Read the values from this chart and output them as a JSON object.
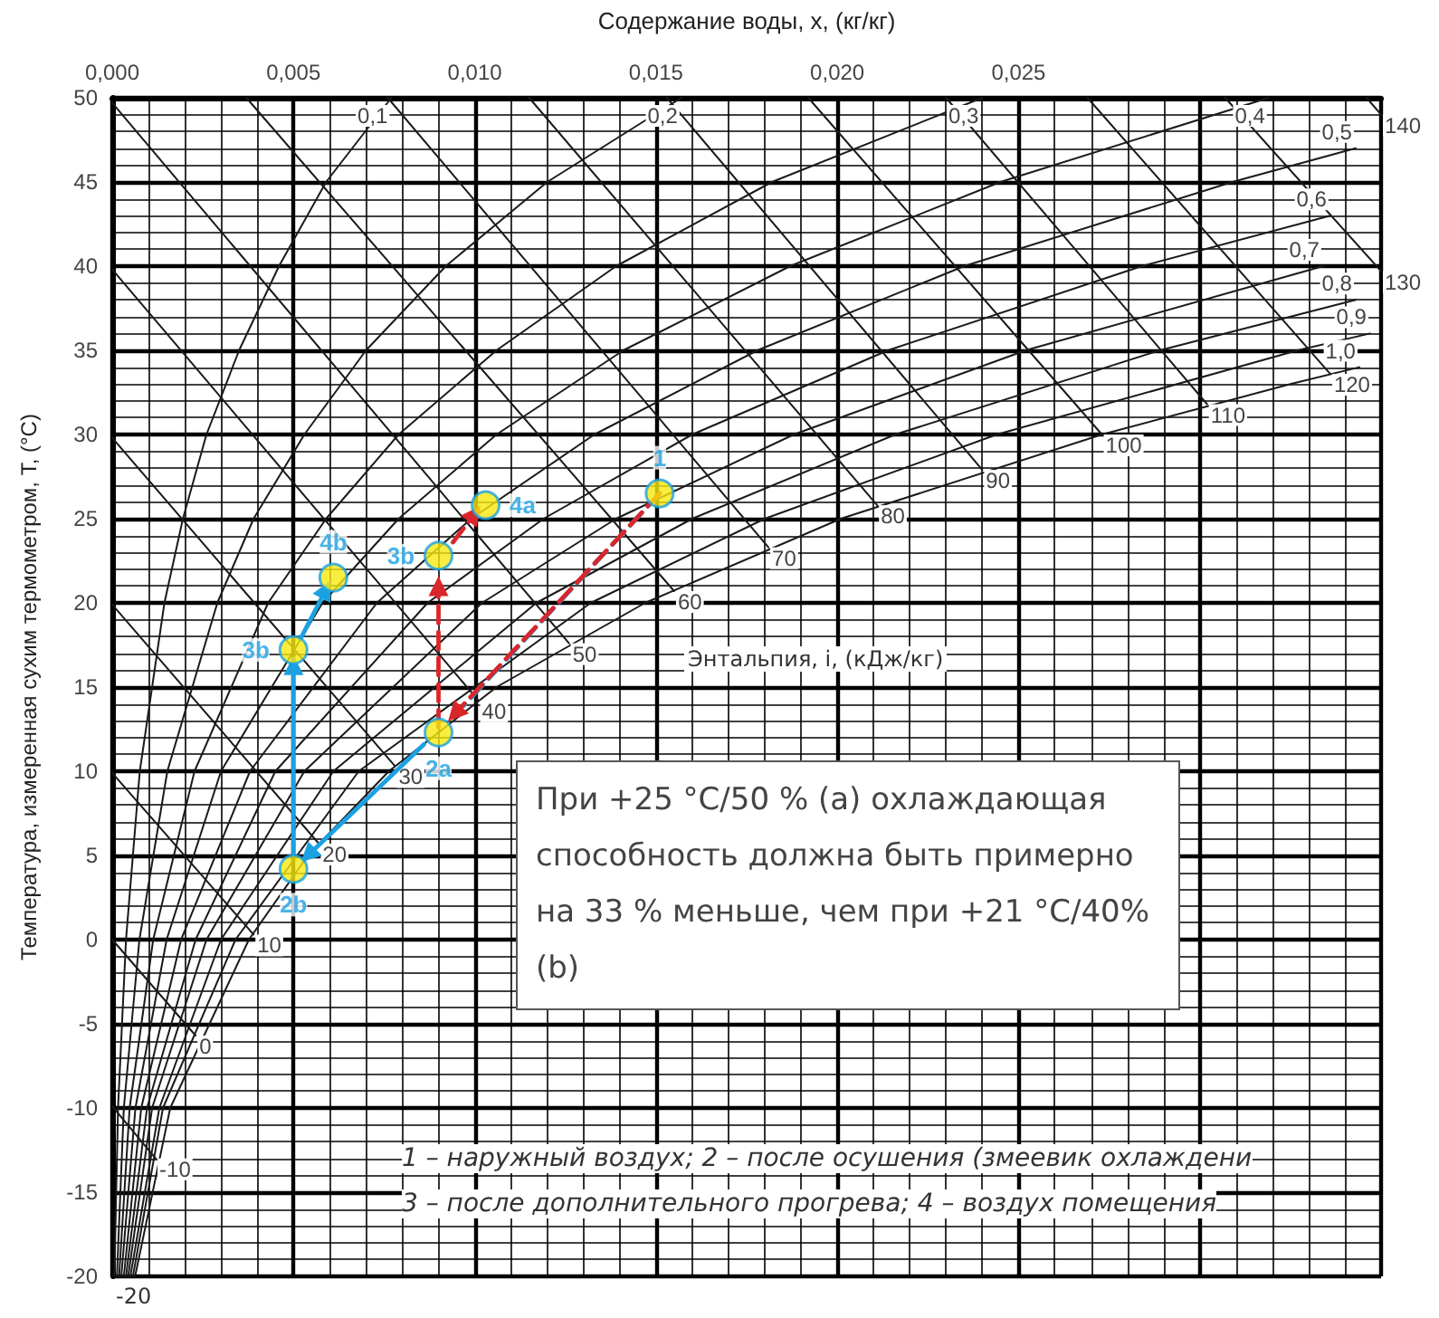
{
  "chart_data": {
    "type": "line",
    "xlabel": "Содержание воды, x, (кг/кг)",
    "ylabel": "Температура, измеренная сухим термометром, T, (°C)",
    "xlim": [
      0,
      0.035
    ],
    "ylim": [
      -20,
      50
    ],
    "xticks": [
      {
        "value": 0,
        "label": "0,000"
      },
      {
        "value": 0.005,
        "label": "0,005"
      },
      {
        "value": 0.01,
        "label": "0,010"
      },
      {
        "value": 0.015,
        "label": "0,015"
      },
      {
        "value": 0.02,
        "label": "0,020"
      },
      {
        "value": 0.025,
        "label": "0,025"
      },
      {
        "value": 0.03,
        "label": null
      },
      {
        "value": 0.035,
        "label": null
      }
    ],
    "yticks": [
      -20,
      -15,
      -10,
      -5,
      0,
      5,
      10,
      15,
      20,
      25,
      30,
      35,
      40,
      45,
      50
    ],
    "grid": true,
    "legend": false,
    "marker": "none",
    "line_style": "solid",
    "annotations": [
      "-20",
      "Энтальпия, i, (кДж/кг)",
      "При +25 °C/50 % (a) охлаждающая способность должна быть примерно на 33 % меньше, чем при +21 °C/40% (b)",
      "1 – наружный воздух; 2 – после осушения (змеевик охлаждени",
      "3 – после дополнительного прогрева; 4 – воздух помещения"
    ],
    "series": [
      {
        "name": "0,1",
        "color": "#1a1a1a",
        "x": [
          6e-05,
          0.00016,
          0.00038,
          0.00076,
          0.00144,
          0.00195,
          0.0026,
          0.0035,
          0.0046,
          0.0059,
          0.0077
        ],
        "values": [
          -20,
          -10,
          0,
          10,
          20,
          25,
          30,
          35,
          40,
          45,
          50
        ]
      },
      {
        "name": "0,2",
        "color": "#1a1a1a",
        "x": [
          0.00013,
          0.00032,
          0.00075,
          0.00152,
          0.0029,
          0.0039,
          0.0053,
          0.007,
          0.0092,
          0.012,
          0.0157
        ],
        "values": [
          -20,
          -10,
          0,
          10,
          20,
          25,
          30,
          35,
          40,
          45,
          50
        ]
      },
      {
        "name": "0,3",
        "color": "#1a1a1a",
        "x": [
          0.00019,
          0.00048,
          0.00113,
          0.00227,
          0.0043,
          0.0059,
          0.0079,
          0.0106,
          0.0139,
          0.0182,
          0.024
        ],
        "values": [
          -20,
          -10,
          0,
          10,
          20,
          25,
          30,
          35,
          40,
          45,
          50
        ]
      },
      {
        "name": "0,4",
        "color": "#1a1a1a",
        "x": [
          0.00025,
          0.00064,
          0.0015,
          0.003,
          0.0058,
          0.0079,
          0.0106,
          0.0141,
          0.0187,
          0.0245,
          0.0319
        ],
        "values": [
          -20,
          -10,
          0,
          10,
          20,
          25,
          30,
          35,
          40,
          45,
          50
        ]
      },
      {
        "name": "0,5",
        "color": "#1a1a1a",
        "x": [
          0.00032,
          0.0008,
          0.0019,
          0.0038,
          0.0073,
          0.0099,
          0.0133,
          0.0178,
          0.0235,
          0.0309,
          0.0343
        ],
        "values": [
          -20,
          -10,
          0,
          10,
          20,
          25,
          30,
          35,
          40,
          45,
          47
        ]
      },
      {
        "name": "0,6",
        "color": "#1a1a1a",
        "x": [
          0.00038,
          0.00096,
          0.0023,
          0.0045,
          0.0087,
          0.0119,
          0.016,
          0.0214,
          0.0284,
          0.0336
        ],
        "values": [
          -20,
          -10,
          0,
          10,
          20,
          25,
          30,
          35,
          40,
          43
        ]
      },
      {
        "name": "0,7",
        "color": "#1a1a1a",
        "x": [
          0.00044,
          0.0011,
          0.0026,
          0.0053,
          0.0102,
          0.0139,
          0.0188,
          0.0252,
          0.0334
        ],
        "values": [
          -20,
          -10,
          0,
          10,
          20,
          25,
          30,
          35,
          40
        ]
      },
      {
        "name": "0,8",
        "color": "#1a1a1a",
        "x": [
          0.0005,
          0.0013,
          0.003,
          0.0061,
          0.0117,
          0.016,
          0.0216,
          0.0289,
          0.0343
        ],
        "values": [
          -20,
          -10,
          0,
          10,
          20,
          25,
          30,
          35,
          38
        ]
      },
      {
        "name": "0,9",
        "color": "#1a1a1a",
        "x": [
          0.00057,
          0.0014,
          0.0034,
          0.0068,
          0.0132,
          0.018,
          0.0244,
          0.0327,
          0.0347
        ],
        "values": [
          -20,
          -10,
          0,
          10,
          20,
          25,
          30,
          35,
          36
        ]
      },
      {
        "name": "1,0",
        "color": "#1a1a1a",
        "x": [
          0.00063,
          0.0016,
          0.00377,
          0.0054,
          0.00763,
          0.0106,
          0.0147,
          0.0201,
          0.0273,
          0.0325,
          0.0344
        ],
        "values": [
          -20,
          -10,
          0,
          5,
          10,
          15,
          20,
          25,
          30,
          33,
          34
        ]
      },
      {
        "name": "-10",
        "color": "#1a1a1a",
        "x": [
          0,
          0.0012
        ],
        "values": [
          -9.9,
          -13
        ]
      },
      {
        "name": "0",
        "color": "#1a1a1a",
        "x": [
          0,
          0.0023
        ],
        "values": [
          0,
          -5.7
        ]
      },
      {
        "name": "10",
        "color": "#1a1a1a",
        "x": [
          0,
          0.0039
        ],
        "values": [
          9.9,
          0.3
        ]
      },
      {
        "name": "20",
        "color": "#1a1a1a",
        "x": [
          0,
          0.0057
        ],
        "values": [
          19.9,
          5.7
        ]
      },
      {
        "name": "30",
        "color": "#1a1a1a",
        "x": [
          0,
          0.0078
        ],
        "values": [
          29.8,
          10.3
        ]
      },
      {
        "name": "40",
        "color": "#1a1a1a",
        "x": [
          0,
          0.0101
        ],
        "values": [
          39.8,
          14.2
        ]
      },
      {
        "name": "50",
        "color": "#1a1a1a",
        "x": [
          0,
          0.0126
        ],
        "values": [
          49.7,
          17.6
        ]
      },
      {
        "name": "60",
        "color": "#1a1a1a",
        "x": [
          0.0037,
          0.0155
        ],
        "values": [
          50,
          20.7
        ]
      },
      {
        "name": "70",
        "color": "#1a1a1a",
        "x": [
          0.0076,
          0.0181
        ],
        "values": [
          50,
          23.3
        ]
      },
      {
        "name": "80",
        "color": "#1a1a1a",
        "x": [
          0.0115,
          0.0211
        ],
        "values": [
          50,
          25.8
        ]
      },
      {
        "name": "90",
        "color": "#1a1a1a",
        "x": [
          0.0153,
          0.024
        ],
        "values": [
          50,
          27.9
        ]
      },
      {
        "name": "100",
        "color": "#1a1a1a",
        "x": [
          0.0192,
          0.0273
        ],
        "values": [
          50,
          30
        ]
      },
      {
        "name": "110",
        "color": "#1a1a1a",
        "x": [
          0.023,
          0.0302
        ],
        "values": [
          50,
          31.8
        ]
      },
      {
        "name": "120",
        "color": "#1a1a1a",
        "x": [
          0.0269,
          0.0336
        ],
        "values": [
          50,
          33.6
        ]
      },
      {
        "name": "130",
        "color": "#1a1a1a",
        "x": [
          0.0307,
          0.035
        ],
        "values": [
          50,
          39.7
        ]
      },
      {
        "name": "140",
        "color": "#1a1a1a",
        "x": [
          0.0346,
          0.035
        ],
        "values": [
          50,
          49
        ]
      },
      {
        "color": "#1ba1e2",
        "line_style": "dashed",
        "x": [
          0.0151,
          0.0097
        ],
        "values": [
          26.5,
          13.9
        ]
      },
      {
        "color": "#d9262b",
        "line_style": "dashed",
        "marker": "triangle",
        "x": [
          0.0151,
          0.00945
        ],
        "values": [
          26.5,
          13.4
        ]
      },
      {
        "color": "#d9262b",
        "line_style": "dashed",
        "marker": "triangle",
        "x": [
          0.009,
          0.009
        ],
        "values": [
          12.6,
          21
        ]
      },
      {
        "color": "#d9262b",
        "line_style": "dashed",
        "marker": "triangle",
        "x": [
          0.0094,
          0.01
        ],
        "values": [
          23.6,
          25.3
        ]
      },
      {
        "color": "#1ba1e2",
        "marker": "triangle",
        "x": [
          0.0086,
          0.0054
        ],
        "values": [
          11.6,
          5
        ]
      },
      {
        "color": "#1ba1e2",
        "marker": "triangle",
        "x": [
          0.005,
          0.005
        ],
        "values": [
          5.1,
          16.3
        ]
      },
      {
        "color": "#1ba1e2",
        "marker": "triangle",
        "x": [
          0.0052,
          0.0059
        ],
        "values": [
          17.9,
          20.8
        ]
      },
      {
        "type": "scatter",
        "name": "1",
        "color": "#f7e80f",
        "marker": "circle",
        "x": [
          0.0151
        ],
        "values": [
          26.5
        ]
      },
      {
        "type": "scatter",
        "name": "2a",
        "color": "#f7e80f",
        "marker": "circle",
        "x": [
          0.009
        ],
        "values": [
          12.3
        ]
      },
      {
        "type": "scatter",
        "name": "2b",
        "color": "#f7e80f",
        "marker": "circle",
        "x": [
          0.005
        ],
        "values": [
          4.2
        ]
      },
      {
        "type": "scatter",
        "name": "3b",
        "color": "#f7e80f",
        "marker": "circle",
        "x": [
          0.009
        ],
        "values": [
          22.8
        ]
      },
      {
        "type": "scatter",
        "name": "3b",
        "color": "#f7e80f",
        "marker": "circle",
        "x": [
          0.005
        ],
        "values": [
          17.2
        ]
      },
      {
        "type": "scatter",
        "name": "4a",
        "color": "#f7e80f",
        "marker": "circle",
        "x": [
          0.0103
        ],
        "values": [
          25.8
        ]
      },
      {
        "type": "scatter",
        "name": "4b",
        "color": "#f7e80f",
        "marker": "circle",
        "x": [
          0.0061
        ],
        "values": [
          21.5
        ]
      }
    ]
  }
}
